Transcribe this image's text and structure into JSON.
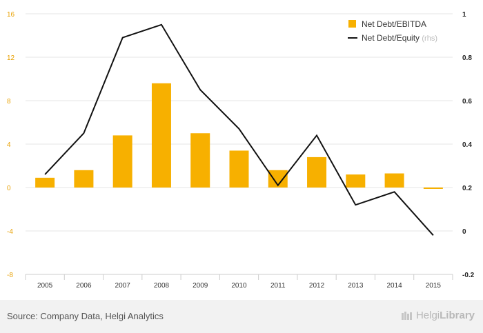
{
  "chart_data": {
    "type": "bar+line",
    "categories": [
      "2005",
      "2006",
      "2007",
      "2008",
      "2009",
      "2010",
      "2011",
      "2012",
      "2013",
      "2014",
      "2015"
    ],
    "series": [
      {
        "name": "Net Debt/EBITDA",
        "type": "bar",
        "axis": "left",
        "values": [
          0.9,
          1.6,
          4.8,
          9.6,
          5.0,
          3.4,
          1.6,
          2.8,
          1.2,
          1.3,
          -0.1
        ]
      },
      {
        "name": "Net Debt/Equity",
        "type": "line",
        "axis": "right",
        "values": [
          0.26,
          0.45,
          0.89,
          0.95,
          0.65,
          0.47,
          0.21,
          0.44,
          0.12,
          0.18,
          -0.02
        ]
      }
    ],
    "legend": {
      "bar_label": "Net Debt/EBITDA",
      "line_label": "Net Debt/Equity",
      "line_suffix": "(rhs)",
      "position": "top-right"
    },
    "y_left": {
      "ylim": [
        -8,
        16
      ],
      "ticks": [
        "16",
        "12",
        "8",
        "4",
        "0",
        "-4",
        "-8"
      ]
    },
    "y_right": {
      "ylim": [
        -0.2,
        1.0
      ],
      "ticks": [
        "1",
        "0.8",
        "0.6",
        "0.4",
        "0.2",
        "0",
        "-0.2"
      ]
    },
    "grid": true,
    "colors": {
      "bar": "#f7b000",
      "line": "#111111",
      "left_tick": "#e8a000",
      "right_tick": "#222222"
    }
  },
  "footer": {
    "source": "Source: Company Data, Helgi Analytics",
    "brand_light": "Helgi",
    "brand_bold": "Library"
  }
}
